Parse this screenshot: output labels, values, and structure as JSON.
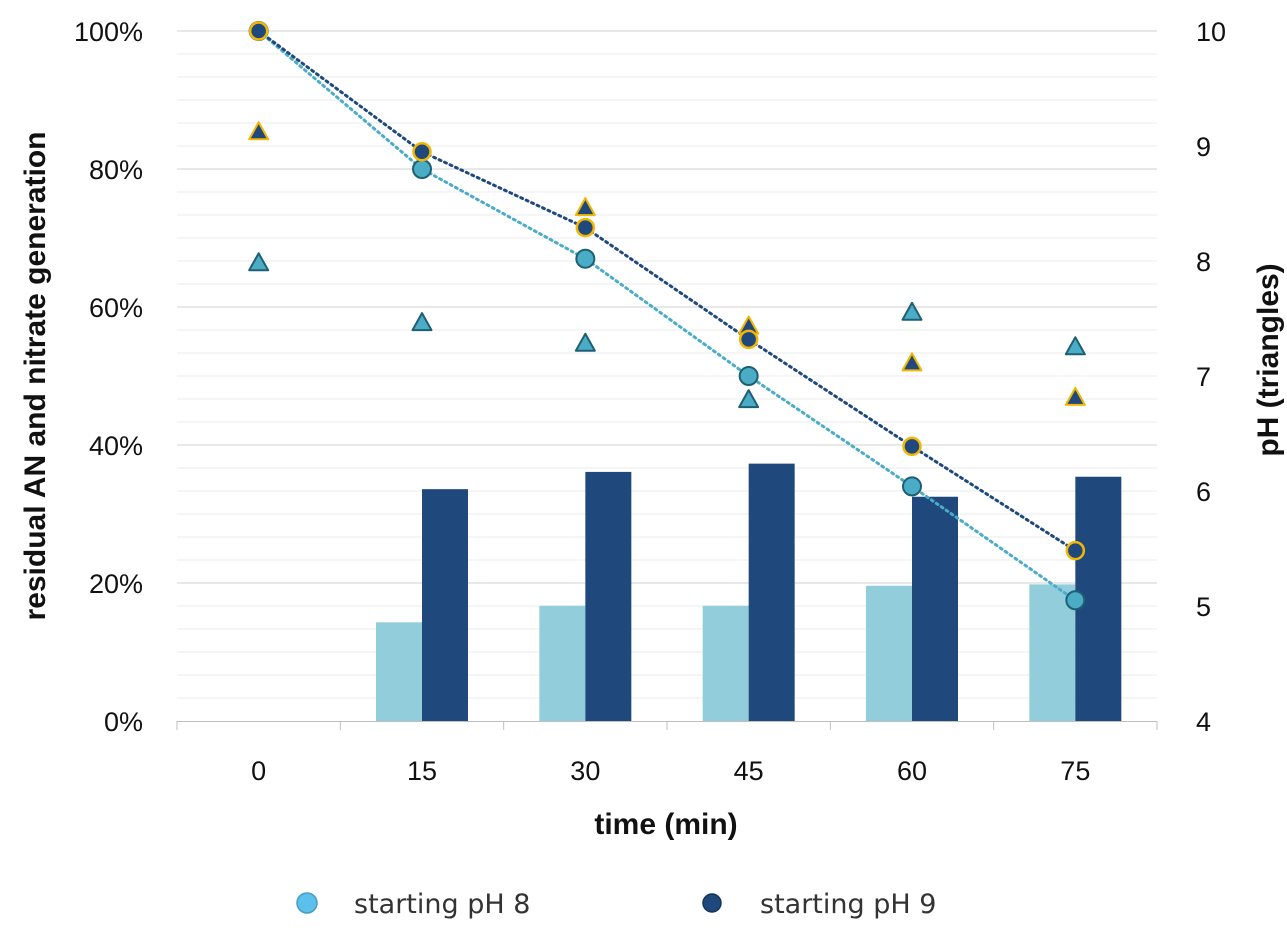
{
  "chart_data": {
    "type": "bar",
    "categories": [
      "0",
      "15",
      "30",
      "45",
      "60",
      "75"
    ],
    "x": [
      0,
      15,
      30,
      45,
      60,
      75
    ],
    "xlabel": "time (min)",
    "ylabel": "residual AN and nitrate generation",
    "y2label": "pH (triangles)",
    "ylim": [
      0,
      1
    ],
    "y_ticks": [
      "0%",
      "20%",
      "40%",
      "60%",
      "80%",
      "100%"
    ],
    "y2lim": [
      4,
      10
    ],
    "y2_ticks": [
      "4",
      "5",
      "6",
      "7",
      "8",
      "9",
      "10"
    ],
    "grid": "horizontal",
    "legend_position": "bottom",
    "series": [
      {
        "name": "starting pH 8",
        "kind": "bar",
        "color": "#92CDDC",
        "values": [
          0,
          0.143,
          0.167,
          0.167,
          0.196,
          0.198
        ]
      },
      {
        "name": "starting pH 9",
        "kind": "bar",
        "color": "#1F497D",
        "values": [
          0,
          0.336,
          0.361,
          0.373,
          0.325,
          0.354
        ]
      },
      {
        "name": "starting pH 8",
        "kind": "line-markers",
        "color": "#4BACC6",
        "values": [
          1.0,
          0.8,
          0.67,
          0.5,
          0.34,
          0.175
        ]
      },
      {
        "name": "starting pH 9",
        "kind": "line-markers",
        "color": "#1F497D",
        "values": [
          1.0,
          0.825,
          0.715,
          0.553,
          0.398,
          0.247
        ]
      },
      {
        "name": "starting pH 8",
        "kind": "ph-triangles",
        "axis": "y2",
        "color": "#4BACC6",
        "values": [
          7.98,
          7.46,
          7.28,
          6.79,
          7.55,
          7.25
        ]
      },
      {
        "name": "starting pH 9",
        "kind": "ph-triangles",
        "axis": "y2",
        "color": "#1F497D",
        "values": [
          9.12,
          null,
          8.46,
          7.43,
          7.11,
          6.81
        ]
      }
    ],
    "legend": [
      {
        "label": "starting pH 8",
        "color": "#5BC0EB"
      },
      {
        "label": "starting pH 9",
        "color": "#1F497D"
      }
    ],
    "marker_edge_pH9": "#F2B705"
  }
}
